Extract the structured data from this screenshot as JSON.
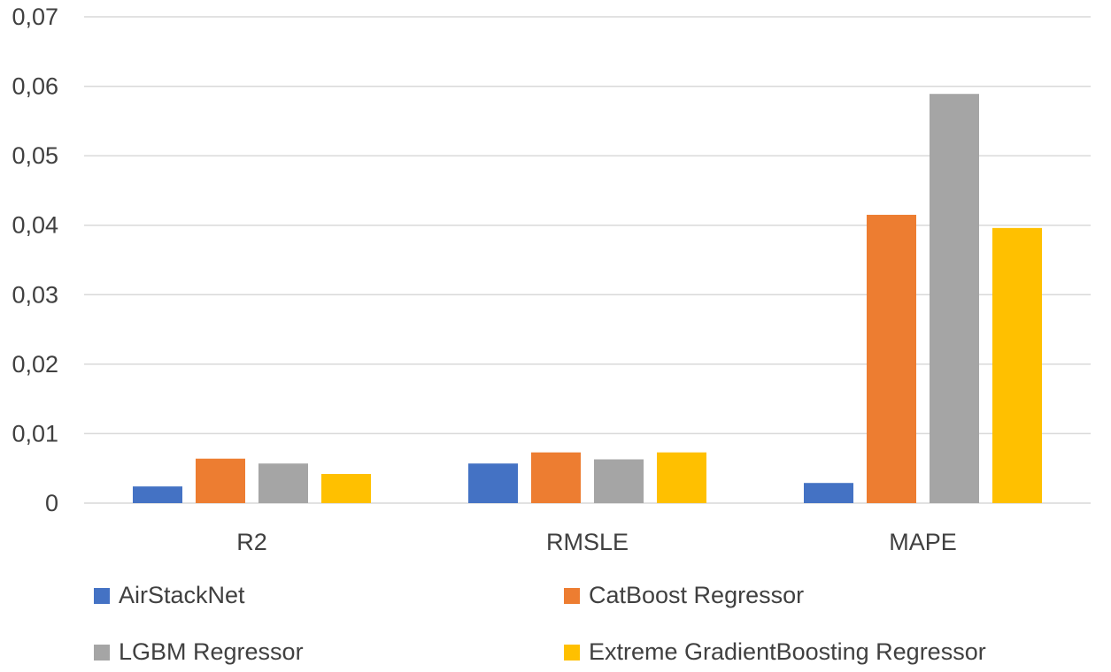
{
  "chart_data": {
    "type": "bar",
    "categories": [
      "R2",
      "RMSLE",
      "MAPE"
    ],
    "series": [
      {
        "name": "AirStackNet",
        "color": "#4472C4",
        "values": [
          0.0024,
          0.0057,
          0.0029
        ]
      },
      {
        "name": "CatBoost Regressor",
        "color": "#ED7D31",
        "values": [
          0.0064,
          0.0073,
          0.0415
        ]
      },
      {
        "name": "LGBM Regressor",
        "color": "#A5A5A5",
        "values": [
          0.0057,
          0.0063,
          0.0589
        ]
      },
      {
        "name": "Extreme GradientBoosting Regressor",
        "color": "#FFC000",
        "values": [
          0.0042,
          0.0073,
          0.0396
        ]
      }
    ],
    "ylim": [
      0,
      0.07
    ],
    "yticks": [
      0,
      0.01,
      0.02,
      0.03,
      0.04,
      0.05,
      0.06,
      0.07
    ],
    "ytick_labels": [
      "0",
      "0,01",
      "0,02",
      "0,03",
      "0,04",
      "0,05",
      "0,06",
      "0,07"
    ],
    "grid": true,
    "legend_position": "bottom",
    "title": "",
    "xlabel": "",
    "ylabel": ""
  }
}
